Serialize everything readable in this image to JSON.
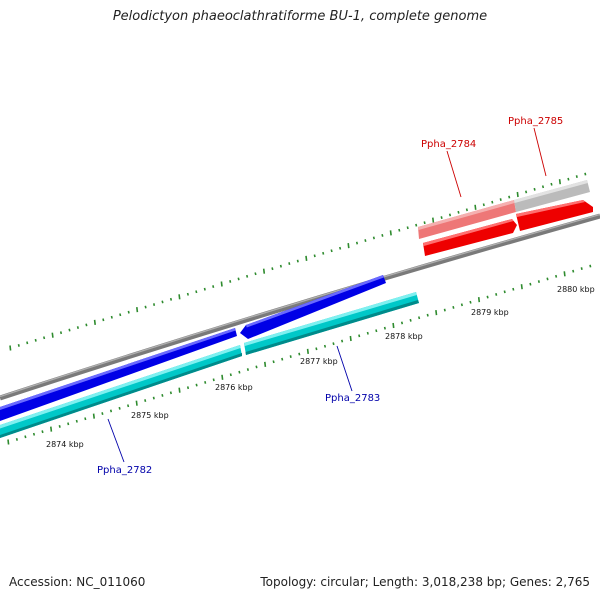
{
  "title": "Pelodictyon phaeoclathratiforme BU-1, complete genome",
  "footer": {
    "accession": "Accession: NC_011060",
    "summary": "Topology: circular; Length: 3,018,238 bp; Genes: 2,765"
  },
  "colors": {
    "backbone": "#808080",
    "tick": "#2e8b2e",
    "forward_cds": "#0000e6",
    "forward_gene": "#00c8c8",
    "reverse_cds": "#ee0000",
    "reverse_gene": "#ee7777",
    "pseudo_gene": "#bbbbbb",
    "label_blue": "#0000aa",
    "label_red": "#cc0000"
  },
  "scale": {
    "kbp_labels": [
      "2874 kbp",
      "2875 kbp",
      "2876 kbp",
      "2877 kbp",
      "2878 kbp",
      "2879 kbp",
      "2880 kbp"
    ],
    "kbp_values": [
      2874,
      2875,
      2876,
      2877,
      2878,
      2879,
      2880
    ]
  },
  "genes": [
    {
      "name": "Ppha_2782",
      "strand": "forward",
      "start_kbp": 2873.0,
      "end_kbp": 2875.8
    },
    {
      "name": "Ppha_2783",
      "strand": "forward",
      "start_kbp": 2875.9,
      "end_kbp": 2878.2
    },
    {
      "name": "Ppha_2784",
      "strand": "reverse",
      "start_kbp": 2878.2,
      "end_kbp": 2879.4
    },
    {
      "name": "Ppha_2785",
      "strand": "reverse",
      "start_kbp": 2879.5,
      "end_kbp": 2880.4
    }
  ]
}
